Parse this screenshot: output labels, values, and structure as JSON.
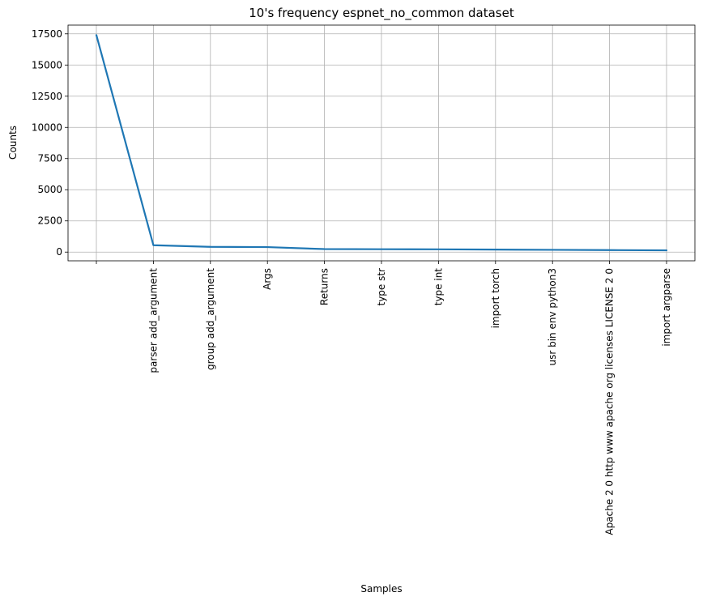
{
  "chart_data": {
    "type": "line",
    "title": "10's frequency espnet_no_common dataset",
    "xlabel": "Samples",
    "ylabel": "Counts",
    "categories": [
      "",
      "parser add_argument",
      "group add_argument",
      "Args",
      "Returns",
      "type str",
      "type int",
      "import torch",
      "usr bin env python3",
      "Apache 2 0 http www apache org licenses LICENSE 2 0",
      "import argparse"
    ],
    "values": [
      17400,
      550,
      420,
      400,
      240,
      230,
      220,
      200,
      180,
      160,
      140
    ],
    "yticks": [
      0,
      2500,
      5000,
      7500,
      10000,
      12500,
      15000,
      17500
    ],
    "ylim": [
      -700,
      18200
    ],
    "grid": true,
    "color": "#1f77b4"
  }
}
